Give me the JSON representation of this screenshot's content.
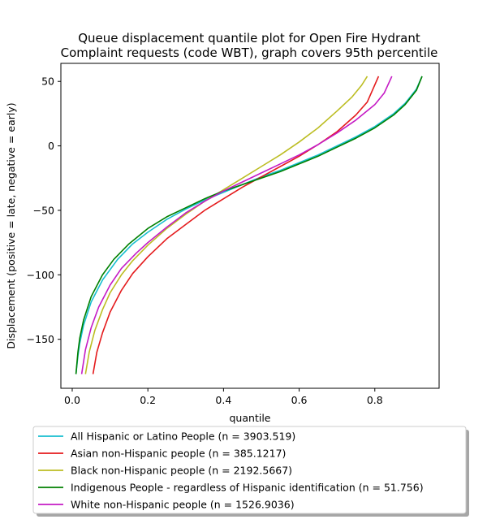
{
  "chart_data": {
    "type": "line",
    "title_lines": [
      "Queue displacement quantile plot for Open Fire Hydrant",
      "Complaint  requests (code WBT), graph covers 95th percentile"
    ],
    "xlabel": "quantile",
    "ylabel": "Displacement (positive = late, negative = early)",
    "xlim": [
      -0.03,
      0.97
    ],
    "ylim": [
      -188,
      64
    ],
    "xticks": [
      0.0,
      0.2,
      0.4,
      0.6,
      0.8
    ],
    "xtick_labels": [
      "0.0",
      "0.2",
      "0.4",
      "0.6",
      "0.8"
    ],
    "yticks": [
      -150,
      -100,
      -50,
      0,
      50
    ],
    "ytick_labels": [
      "−150",
      "−100",
      "−50",
      "0",
      "50"
    ],
    "grid": false,
    "legend_position": "below",
    "series": [
      {
        "name": "All Hispanic or Latino People (n = 3903.519)",
        "color": "#17becf",
        "x": [
          0.01,
          0.015,
          0.02,
          0.03,
          0.05,
          0.08,
          0.12,
          0.16,
          0.2,
          0.25,
          0.3,
          0.35,
          0.4,
          0.45,
          0.5,
          0.55,
          0.6,
          0.65,
          0.7,
          0.75,
          0.8,
          0.85,
          0.88,
          0.91,
          0.925
        ],
        "y": [
          -177,
          -163,
          -153,
          -139,
          -121,
          -104,
          -88,
          -76,
          -67,
          -57,
          -49,
          -42,
          -36,
          -30,
          -24,
          -19,
          -13,
          -7,
          0,
          7,
          15,
          25,
          33,
          44,
          54
        ]
      },
      {
        "name": "Asian non-Hispanic people (n = 385.1217)",
        "color": "#e41a1c",
        "x": [
          0.055,
          0.065,
          0.08,
          0.1,
          0.13,
          0.16,
          0.2,
          0.25,
          0.3,
          0.35,
          0.4,
          0.45,
          0.5,
          0.55,
          0.6,
          0.65,
          0.7,
          0.75,
          0.78,
          0.81
        ],
        "y": [
          -177,
          -160,
          -145,
          -129,
          -112,
          -99,
          -86,
          -72,
          -61,
          -50,
          -41,
          -32,
          -24,
          -16,
          -8,
          1,
          11,
          24,
          34,
          54
        ]
      },
      {
        "name": "Black non-Hispanic people (n = 2192.5667)",
        "color": "#bcbd22",
        "x": [
          0.035,
          0.045,
          0.06,
          0.08,
          0.1,
          0.13,
          0.16,
          0.2,
          0.25,
          0.3,
          0.35,
          0.4,
          0.45,
          0.5,
          0.55,
          0.6,
          0.65,
          0.7,
          0.74,
          0.765,
          0.78
        ],
        "y": [
          -177,
          -160,
          -143,
          -127,
          -114,
          -100,
          -89,
          -77,
          -64,
          -53,
          -43,
          -34,
          -25,
          -16,
          -7,
          3,
          14,
          27,
          38,
          47,
          54
        ]
      },
      {
        "name": "Indigenous People - regardless of Hispanic identification (n = 51.756)",
        "color": "#008000",
        "x": [
          0.01,
          0.015,
          0.02,
          0.03,
          0.05,
          0.08,
          0.11,
          0.15,
          0.2,
          0.25,
          0.3,
          0.35,
          0.4,
          0.45,
          0.5,
          0.55,
          0.6,
          0.65,
          0.7,
          0.75,
          0.8,
          0.85,
          0.88,
          0.91,
          0.925
        ],
        "y": [
          -177,
          -160,
          -149,
          -135,
          -117,
          -100,
          -88,
          -76,
          -64,
          -55,
          -48,
          -41,
          -35,
          -30,
          -25,
          -20,
          -14,
          -8,
          -1,
          6,
          14,
          24,
          32,
          43,
          54
        ]
      },
      {
        "name": "White non-Hispanic people (n = 1526.9036)",
        "color": "#c51bc5",
        "x": [
          0.025,
          0.035,
          0.05,
          0.07,
          0.1,
          0.13,
          0.17,
          0.2,
          0.25,
          0.3,
          0.35,
          0.4,
          0.45,
          0.5,
          0.55,
          0.6,
          0.65,
          0.7,
          0.75,
          0.8,
          0.825,
          0.845
        ],
        "y": [
          -177,
          -158,
          -141,
          -125,
          -108,
          -95,
          -83,
          -75,
          -63,
          -52,
          -43,
          -35,
          -28,
          -21,
          -14,
          -7,
          1,
          10,
          20,
          32,
          41,
          54
        ]
      }
    ]
  }
}
